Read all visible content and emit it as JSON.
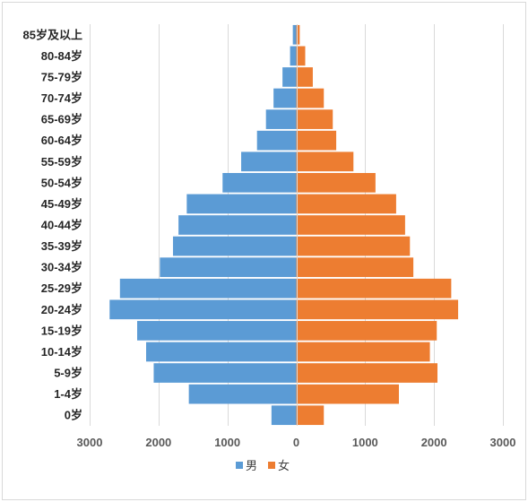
{
  "chart_data": {
    "type": "bar",
    "orientation": "horizontal",
    "layout": "population-pyramid",
    "categories": [
      "85岁及以上",
      "80-84岁",
      "75-79岁",
      "70-74岁",
      "65-69岁",
      "60-64岁",
      "55-59岁",
      "50-54岁",
      "45-49岁",
      "40-44岁",
      "35-39岁",
      "30-34岁",
      "25-29岁",
      "20-24岁",
      "15-19岁",
      "10-14岁",
      "5-9岁",
      "1-4岁",
      "0岁"
    ],
    "series": [
      {
        "name": "男",
        "color": "#5b9bd5",
        "values": [
          50,
          90,
          200,
          330,
          440,
          570,
          800,
          1070,
          1590,
          1710,
          1790,
          1980,
          2560,
          2710,
          2310,
          2180,
          2070,
          1560,
          360
        ]
      },
      {
        "name": "女",
        "color": "#ed7d31",
        "values": [
          50,
          130,
          240,
          400,
          530,
          580,
          830,
          1150,
          1450,
          1580,
          1650,
          1700,
          2250,
          2350,
          2040,
          1940,
          2050,
          1490,
          400
        ]
      }
    ],
    "xlim": [
      -3000,
      3000
    ],
    "x_ticks": [
      {
        "value": -3000,
        "label": "3000"
      },
      {
        "value": -2000,
        "label": "2000"
      },
      {
        "value": -1000,
        "label": "1000"
      },
      {
        "value": 0,
        "label": "0"
      },
      {
        "value": 1000,
        "label": "1000"
      },
      {
        "value": 2000,
        "label": "2000"
      },
      {
        "value": 3000,
        "label": "3000"
      }
    ],
    "grid": "vertical",
    "legend_position": "bottom",
    "title": "",
    "xlabel": "",
    "ylabel": ""
  }
}
